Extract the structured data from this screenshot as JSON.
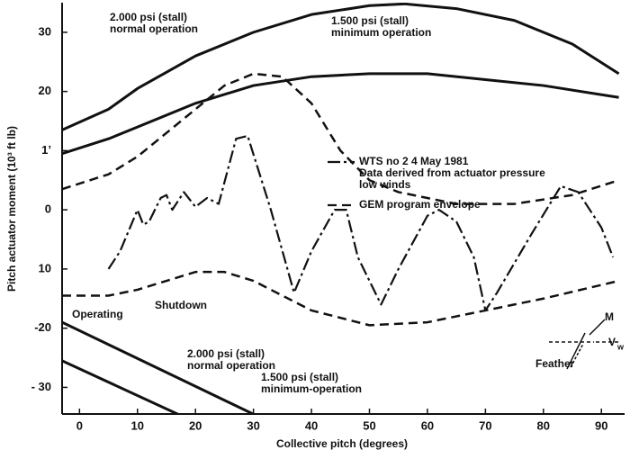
{
  "chart_data": {
    "type": "line",
    "x_label": "Collective pitch (degrees)",
    "y_label": "Pitch actuator moment (10³ ft lb)",
    "xlim": [
      -3,
      94
    ],
    "ylim": [
      -34.5,
      35
    ],
    "xticks": [
      0,
      10,
      20,
      30,
      40,
      50,
      60,
      70,
      80,
      90
    ],
    "yticks": [
      30,
      20,
      {
        "value": 10,
        "label": "1ʼ"
      },
      0,
      {
        "value": -10,
        "label": "10"
      },
      -20,
      {
        "value": -30,
        "label": "- 30"
      }
    ],
    "color": "#111111",
    "series": [
      {
        "style": "solid",
        "x": [
          -3,
          5,
          10,
          20,
          30,
          40,
          50,
          56,
          65,
          75,
          85,
          93
        ],
        "values": [
          13.5,
          17,
          20.5,
          26,
          30,
          33,
          34.5,
          34.8,
          34,
          32,
          28,
          23
        ]
      },
      {
        "style": "solid",
        "x": [
          -3,
          5,
          10,
          20,
          30,
          40,
          50,
          60,
          70,
          80,
          93
        ],
        "values": [
          9.5,
          12,
          14,
          18,
          21,
          22.5,
          23,
          23,
          22,
          21,
          19
        ]
      },
      {
        "name": "GEM program envelope",
        "style": "dashed",
        "x": [
          -3,
          5,
          10,
          15,
          20,
          25,
          30,
          35,
          40,
          45,
          50,
          55,
          65,
          75,
          85,
          93
        ],
        "values": [
          3.5,
          6,
          9,
          13,
          17,
          21,
          23,
          22.5,
          18,
          10,
          5,
          3,
          1,
          1,
          2.5,
          5
        ]
      },
      {
        "style": "dashed",
        "x": [
          -3,
          5,
          10,
          15,
          20,
          25,
          30,
          40,
          50,
          60,
          70,
          80,
          93
        ],
        "values": [
          -14.5,
          -14.5,
          -13.5,
          -12,
          -10.5,
          -10.5,
          -12,
          -17,
          -19.5,
          -19,
          -17,
          -15,
          -12
        ]
      },
      {
        "name": "WTS no 2 4 May 1981",
        "style": "dashdot",
        "x": [
          5,
          7,
          10,
          11,
          12,
          14,
          15,
          16,
          18,
          20,
          22,
          24,
          27,
          29,
          33,
          37,
          40,
          44,
          46,
          48,
          52,
          55,
          60,
          62,
          65,
          68,
          70,
          72,
          78,
          83,
          86,
          90,
          92
        ],
        "values": [
          -10,
          -7,
          0,
          -2.5,
          -2,
          2,
          2.5,
          0,
          3,
          0.5,
          2,
          1,
          12,
          12.5,
          0,
          -14,
          -7,
          0,
          0,
          -8,
          -16,
          -10,
          -1,
          0,
          -2,
          -8,
          -17,
          -14,
          -4,
          4,
          3,
          -3,
          -8
        ]
      },
      {
        "style": "solid",
        "x": [
          -3,
          31
        ],
        "values": [
          -19,
          -35
        ]
      },
      {
        "style": "solid",
        "x": [
          -3,
          18
        ],
        "values": [
          -25.5,
          -35
        ]
      }
    ],
    "legend_lines": [
      "Data derived from actuator pressure",
      "low winds"
    ],
    "annotations": [
      "2.000 psi (stall)",
      "normal operation",
      "1.500 psi (stall)",
      "minimum operation",
      "2.000 psi (stall)",
      "normal operation",
      "1.500 psi (stall)",
      "minimum-operation",
      "Shutdown",
      "Operating",
      "Feather",
      "M",
      "V",
      "w"
    ]
  }
}
